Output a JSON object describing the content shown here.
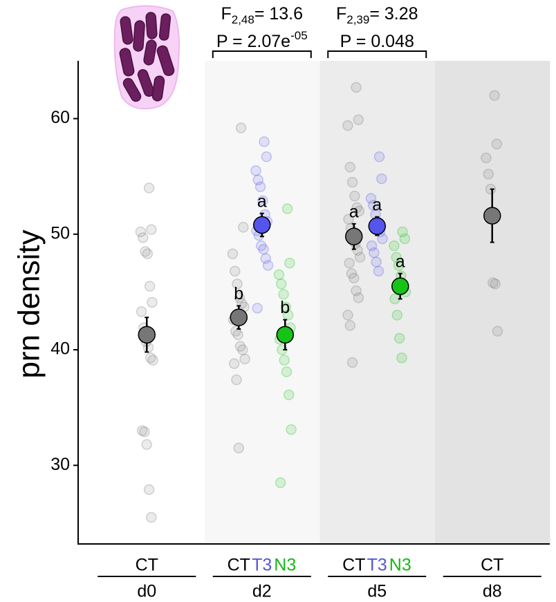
{
  "chart_data": {
    "type": "scatter",
    "y_label": "prn density",
    "ylim": [
      23.2,
      65
    ],
    "yticks": [
      30,
      40,
      50,
      60
    ],
    "grid": false,
    "groups": [
      {
        "label": "d0",
        "conditions": [
          {
            "label": "CT",
            "color": "#777777",
            "label_color": "#000000",
            "values": [
              54.0,
              50.4,
              50.2,
              49.7,
              48.5,
              48.3,
              45.5,
              44.1,
              43.3,
              41.9,
              40.7,
              40.2,
              39.3,
              39.1,
              33.0,
              32.9,
              31.8,
              27.9,
              25.5
            ],
            "mean": 41.3,
            "error": 1.5
          }
        ]
      },
      {
        "label": "d2",
        "background": "#f7f7f7",
        "stats": {
          "f": "F",
          "df": "2,48",
          "f_value": "= 13.6",
          "p": "P = 2.07e",
          "p_exp": "-05"
        },
        "conditions": [
          {
            "label": "CT",
            "color": "#777777",
            "label_color": "#000000",
            "values": [
              59.2,
              50.6,
              48.3,
              46.8,
              45.7,
              44.5,
              44.0,
              43.7,
              42.6,
              41.6,
              41.3,
              40.3,
              40.0,
              39.2,
              38.8,
              37.4,
              31.5
            ],
            "mean": 42.8,
            "error": 1.0,
            "letter": "b"
          },
          {
            "label": "T3",
            "color": "#5555ee",
            "label_color": "#5555dd",
            "values": [
              58.0,
              56.7,
              55.5,
              54.7,
              54.1,
              52.9,
              51.7,
              51.1,
              50.3,
              49.9,
              49.0,
              48.7,
              47.9,
              47.3,
              43.6
            ],
            "mean": 50.8,
            "error": 1.0,
            "letter": "a"
          },
          {
            "label": "N3",
            "color": "#17c317",
            "label_color": "#16b816",
            "values": [
              52.2,
              47.5,
              46.5,
              45.7,
              44.8,
              43.7,
              43.0,
              41.9,
              40.9,
              40.0,
              39.1,
              38.1,
              36.1,
              33.1,
              28.5
            ],
            "mean": 41.3,
            "error": 1.3,
            "letter": "b"
          }
        ]
      },
      {
        "label": "d5",
        "background": "#ececec",
        "stats": {
          "f": "F",
          "df": "2,39",
          "f_value": "= 3.28",
          "p": "P = 0.048"
        },
        "conditions": [
          {
            "label": "CT",
            "color": "#777777",
            "label_color": "#000000",
            "values": [
              62.7,
              59.9,
              59.4,
              55.8,
              54.5,
              53.3,
              52.3,
              52.0,
              51.3,
              50.5,
              49.9,
              49.2,
              48.6,
              48.0,
              47.5,
              46.6,
              46.2,
              45.1,
              44.5,
              43.0,
              42.1,
              38.9
            ],
            "mean": 49.8,
            "error": 1.1,
            "letter": "a"
          },
          {
            "label": "T3",
            "color": "#5555ee",
            "label_color": "#5555dd",
            "values": [
              56.7,
              54.8,
              53.1,
              52.5,
              51.7,
              51.0,
              50.2,
              49.6,
              49.0,
              48.4,
              47.6,
              46.8
            ],
            "mean": 50.7,
            "error": 0.8,
            "letter": "a"
          },
          {
            "label": "N3",
            "color": "#17c317",
            "label_color": "#16b816",
            "values": [
              50.2,
              49.6,
              49.0,
              48.0,
              47.3,
              46.4,
              45.6,
              45.0,
              44.4,
              43.0,
              41.0,
              39.3
            ],
            "mean": 45.5,
            "error": 1.1,
            "letter": "a"
          }
        ]
      },
      {
        "label": "d8",
        "background": "#e3e3e3",
        "conditions": [
          {
            "label": "CT",
            "color": "#777777",
            "label_color": "#000000",
            "values": [
              62.0,
              57.8,
              56.6,
              55.2,
              53.9,
              45.8,
              45.7,
              41.6
            ],
            "mean": 51.6,
            "error": 2.3
          }
        ]
      }
    ]
  }
}
